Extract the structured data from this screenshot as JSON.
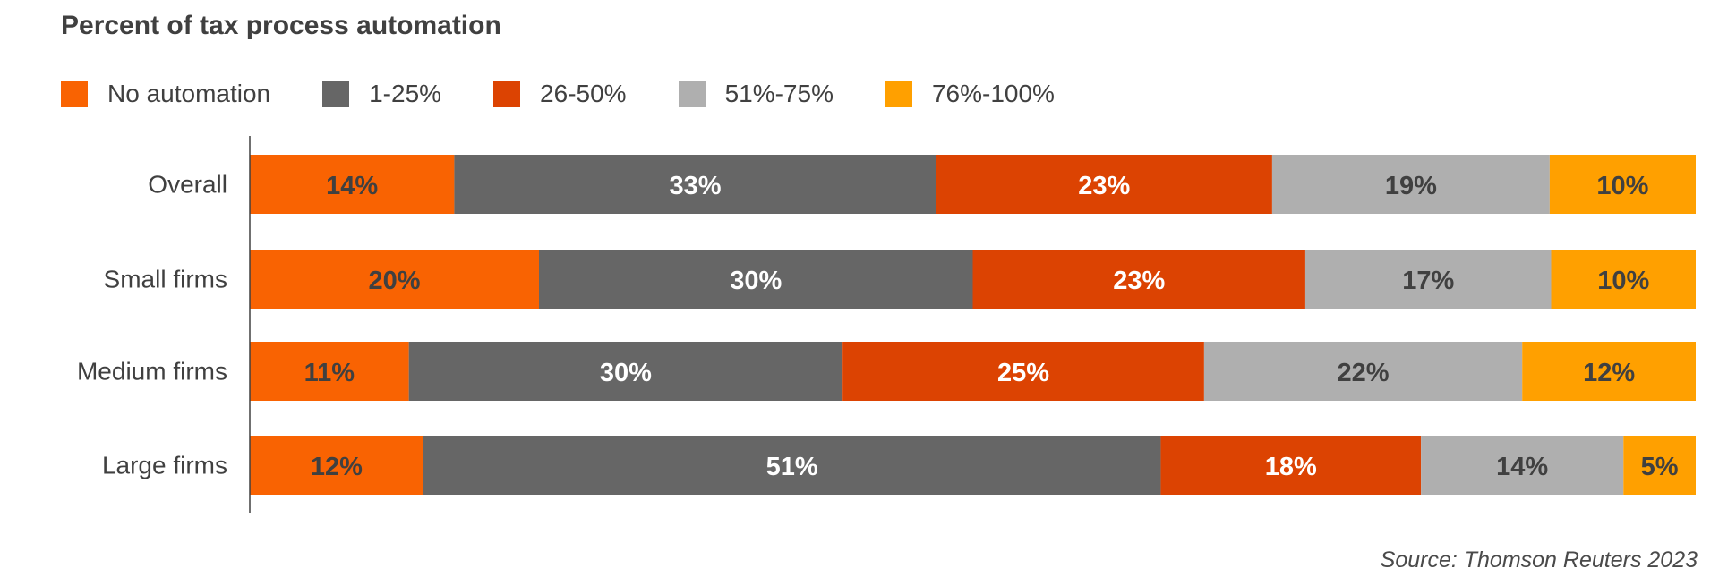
{
  "chart_data": {
    "type": "bar",
    "orientation": "horizontal",
    "stacked": true,
    "title": "Percent of tax process automation",
    "categories": [
      "Overall",
      "Small firms",
      "Medium firms",
      "Large firms"
    ],
    "series": [
      {
        "name": "No automation",
        "color": "#F96302",
        "label_color": "#404040",
        "values": [
          14,
          20,
          11,
          12
        ]
      },
      {
        "name": "1-25%",
        "color": "#666666",
        "label_color": "#FFFFFF",
        "values": [
          33,
          30,
          30,
          51
        ]
      },
      {
        "name": "26-50%",
        "color": "#DC4302",
        "label_color": "#FFFFFF",
        "values": [
          23,
          23,
          25,
          18
        ]
      },
      {
        "name": "51%-75%",
        "color": "#AFAFAF",
        "label_color": "#404040",
        "values": [
          19,
          17,
          22,
          14
        ]
      },
      {
        "name": "76%-100%",
        "color": "#FFA000",
        "label_color": "#404040",
        "values": [
          10,
          10,
          12,
          5
        ]
      }
    ],
    "labels": [
      [
        "14%",
        "33%",
        "23%",
        "19%",
        "10%"
      ],
      [
        "20%",
        "30%",
        "23%",
        "17%",
        "10%"
      ],
      [
        "11%",
        "30%",
        "25%",
        "22%",
        "12%"
      ],
      [
        "12%",
        "51%",
        "18%",
        "14%",
        "5%"
      ]
    ],
    "xlim": [
      0,
      100
    ],
    "legend_position": "top-left",
    "grid": false,
    "source": "Source: Thomson Reuters 2023"
  }
}
